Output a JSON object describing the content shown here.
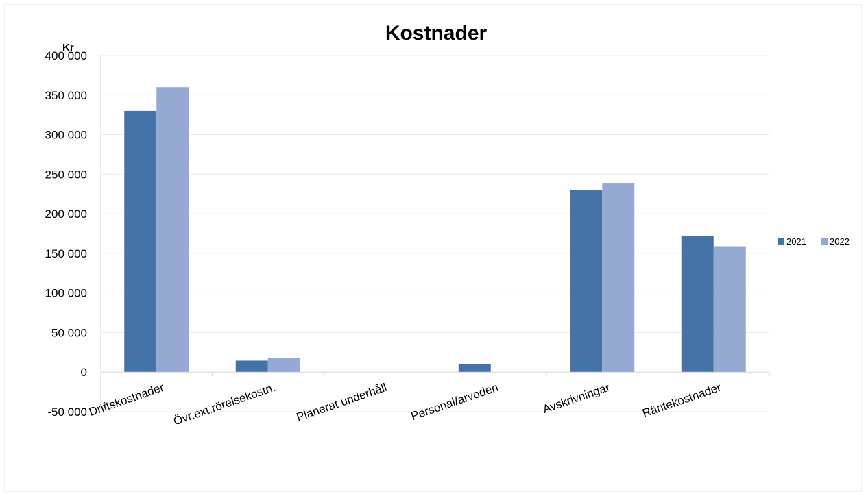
{
  "chart_data": {
    "type": "bar",
    "title": "Kostnader",
    "ylabel": "Kr",
    "xlabel": "",
    "ylim": [
      -50000,
      400000
    ],
    "ytick_values": [
      -50000,
      0,
      50000,
      100000,
      150000,
      200000,
      250000,
      300000,
      350000,
      400000
    ],
    "ytick_labels": [
      "-50 000",
      "0",
      "50 000",
      "100 000",
      "150 000",
      "200 000",
      "250 000",
      "300 000",
      "350 000",
      "400 000"
    ],
    "categories": [
      "Driftskostnader",
      "Övr.ext.rörelsekostn.",
      "Planerat underhåll",
      "Personal/arvoden",
      "Avskrivningar",
      "Räntekostnader"
    ],
    "series": [
      {
        "name": "2021",
        "color": "#4572a7",
        "values": [
          330000,
          14500,
          0,
          10500,
          230000,
          172000
        ]
      },
      {
        "name": "2022",
        "color": "#95a9d2",
        "values": [
          360000,
          17500,
          0,
          0,
          239000,
          159000
        ]
      }
    ],
    "grid": true,
    "legend_position": "right"
  }
}
